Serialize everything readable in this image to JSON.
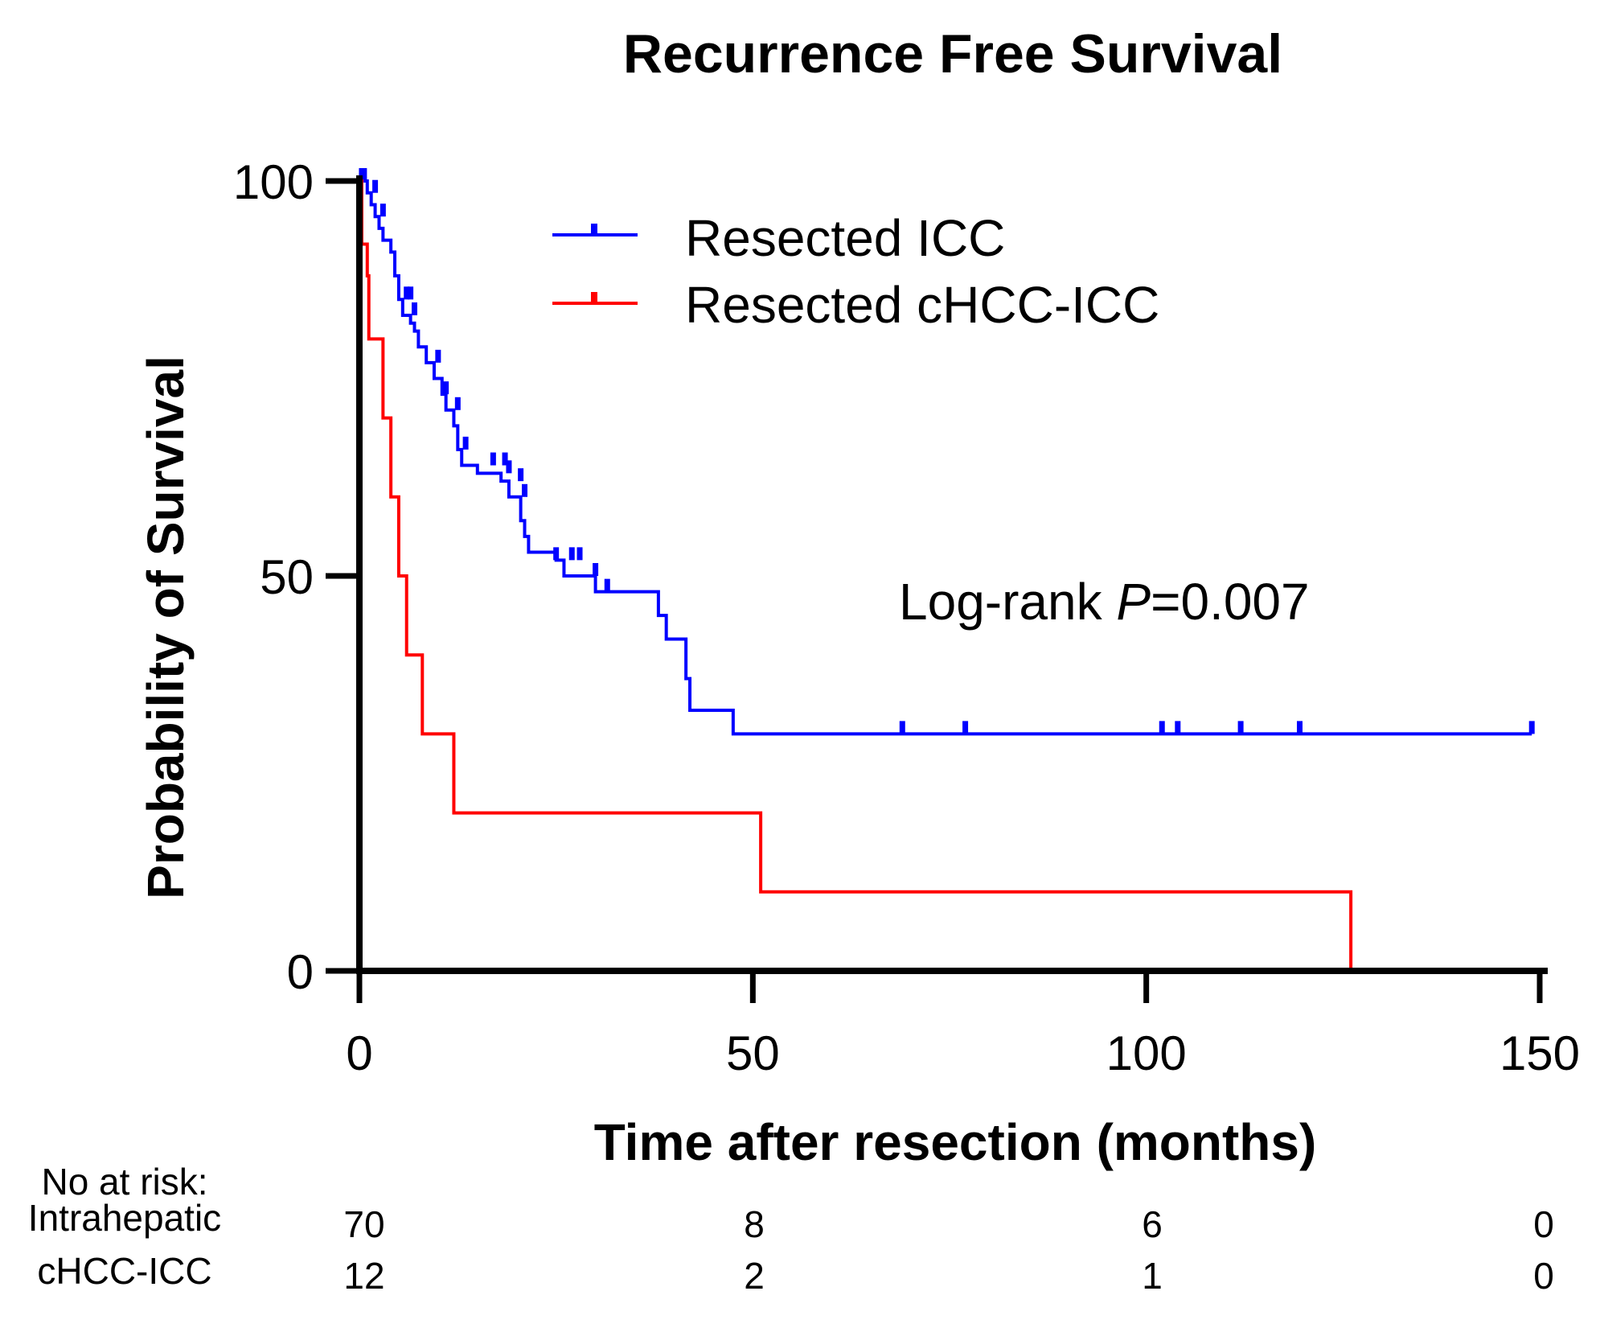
{
  "chart_data": {
    "type": "line",
    "subtype": "kaplan-meier",
    "title": "Recurrence Free Survival",
    "xlabel": "Time after resection (months)",
    "ylabel": "Probability of Survival",
    "xlim": [
      0,
      150
    ],
    "ylim": [
      0,
      100
    ],
    "xticks": [
      "0",
      "50",
      "100",
      "150"
    ],
    "yticks": [
      "0",
      "50",
      "100"
    ],
    "xtick_values": [
      0,
      50,
      100,
      150
    ],
    "ytick_values": [
      0,
      50,
      100
    ],
    "annotation": {
      "prefix": "Log-rank ",
      "italic": "P",
      "suffix": "=0.007"
    },
    "legend": [
      {
        "label": "Resected ICC",
        "color": "#0000ff"
      },
      {
        "label": "Resected cHCC-ICC",
        "color": "#ff0000"
      }
    ],
    "series": [
      {
        "name": "Resected ICC",
        "color": "#0000ff",
        "steps": [
          [
            0,
            100
          ],
          [
            0.5,
            100
          ],
          [
            1,
            98.5
          ],
          [
            1.5,
            97
          ],
          [
            2,
            95.5
          ],
          [
            2.5,
            94
          ],
          [
            3,
            92.5
          ],
          [
            4,
            91
          ],
          [
            4.5,
            88
          ],
          [
            5,
            85
          ],
          [
            5.5,
            83
          ],
          [
            6.5,
            82
          ],
          [
            7,
            81
          ],
          [
            7.5,
            79
          ],
          [
            8.5,
            77
          ],
          [
            9.5,
            75
          ],
          [
            10.5,
            73
          ],
          [
            11,
            71
          ],
          [
            12,
            69
          ],
          [
            12.5,
            66
          ],
          [
            13,
            64
          ],
          [
            15,
            63
          ],
          [
            18,
            62
          ],
          [
            19,
            60
          ],
          [
            20.5,
            57
          ],
          [
            21,
            55
          ],
          [
            21.5,
            53
          ],
          [
            25,
            52
          ],
          [
            26,
            50
          ],
          [
            30,
            48
          ],
          [
            38,
            45
          ],
          [
            39,
            42
          ],
          [
            41.5,
            37
          ],
          [
            42,
            33
          ],
          [
            47.5,
            30
          ]
        ],
        "end": 149,
        "censors": [
          [
            0.3,
            100
          ],
          [
            0.6,
            100
          ],
          [
            2,
            98.5
          ],
          [
            3,
            95.5
          ],
          [
            6,
            85
          ],
          [
            6.5,
            85
          ],
          [
            7,
            83
          ],
          [
            10,
            77
          ],
          [
            11,
            73
          ],
          [
            12.5,
            71
          ],
          [
            13.5,
            66
          ],
          [
            17,
            64
          ],
          [
            18.5,
            64
          ],
          [
            19,
            63
          ],
          [
            20.5,
            62
          ],
          [
            21,
            60
          ],
          [
            25,
            52
          ],
          [
            27,
            52
          ],
          [
            28,
            52
          ],
          [
            30,
            50
          ],
          [
            31.5,
            48
          ],
          [
            69,
            30
          ],
          [
            77,
            30
          ],
          [
            102,
            30
          ],
          [
            104,
            30
          ],
          [
            112,
            30
          ],
          [
            119.5,
            30
          ],
          [
            149,
            30
          ]
        ]
      },
      {
        "name": "Resected cHCC-ICC",
        "color": "#ff0000",
        "steps": [
          [
            0,
            100
          ],
          [
            0.3,
            92
          ],
          [
            1,
            88
          ],
          [
            1.2,
            80
          ],
          [
            3,
            70
          ],
          [
            4,
            60
          ],
          [
            5,
            50
          ],
          [
            6,
            40
          ],
          [
            8,
            30
          ],
          [
            12,
            20
          ],
          [
            51,
            10
          ],
          [
            126,
            0
          ]
        ],
        "end": 126,
        "censors": []
      }
    ],
    "risk_table": {
      "header": "No at risk:",
      "times": [
        0,
        50,
        100,
        150
      ],
      "rows": [
        {
          "label": "Intrahepatic",
          "counts": [
            "70",
            "8",
            "6",
            "0"
          ]
        },
        {
          "label": "cHCC-ICC",
          "counts": [
            "12",
            "2",
            "1",
            "0"
          ]
        }
      ]
    }
  }
}
